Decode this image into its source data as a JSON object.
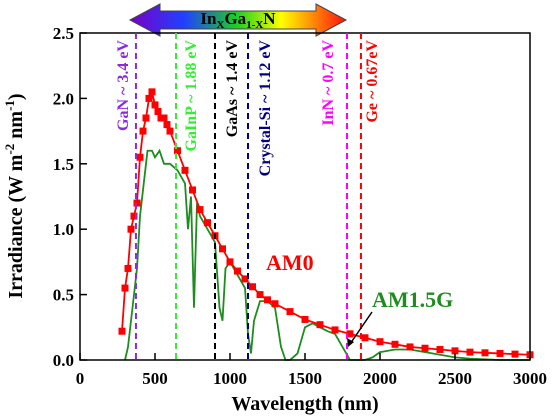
{
  "chart_data": {
    "type": "line",
    "banner": [
      "In",
      "X",
      "Ga",
      "1-X",
      "N"
    ],
    "xlabel": "Wavelength (nm)",
    "ylabel": [
      "Irradiance (W m",
      "-2",
      " nm",
      "-1",
      ")"
    ],
    "xlim": [
      0,
      3000
    ],
    "ylim": [
      0,
      2.5
    ],
    "xticks": [
      0,
      500,
      1000,
      1500,
      2000,
      2500,
      3000
    ],
    "yticks": [
      {
        "value": 0,
        "label": "0.0"
      },
      0.5,
      {
        "value": 1,
        "label": "1.0"
      },
      1.5,
      {
        "value": 2,
        "label": "2.0"
      },
      2.5
    ],
    "series": [
      {
        "name": "AM0",
        "color": "#ff0000",
        "markers": true,
        "x": [
          280,
          300,
          320,
          340,
          360,
          380,
          400,
          420,
          440,
          460,
          480,
          500,
          520,
          540,
          560,
          580,
          600,
          650,
          700,
          750,
          800,
          850,
          900,
          950,
          1000,
          1050,
          1100,
          1150,
          1200,
          1250,
          1300,
          1400,
          1500,
          1600,
          1700,
          1800,
          1900,
          2000,
          2100,
          2200,
          2300,
          2400,
          2500,
          2600,
          2700,
          2800,
          2900,
          3000
        ],
        "values": [
          0.22,
          0.55,
          0.7,
          1.0,
          1.1,
          1.2,
          1.55,
          1.75,
          1.85,
          2.0,
          2.05,
          1.95,
          1.9,
          1.85,
          1.85,
          1.8,
          1.75,
          1.6,
          1.45,
          1.3,
          1.15,
          1.05,
          0.95,
          0.85,
          0.75,
          0.68,
          0.62,
          0.56,
          0.5,
          0.46,
          0.43,
          0.37,
          0.31,
          0.27,
          0.23,
          0.2,
          0.17,
          0.14,
          0.12,
          0.1,
          0.09,
          0.08,
          0.07,
          0.06,
          0.055,
          0.05,
          0.045,
          0.04
        ]
      },
      {
        "name": "AM1.5G",
        "color": "#1e8c1e",
        "markers": false,
        "x": [
          300,
          320,
          350,
          380,
          400,
          420,
          450,
          480,
          500,
          530,
          560,
          600,
          650,
          700,
          720,
          740,
          760,
          780,
          800,
          850,
          900,
          930,
          950,
          970,
          1000,
          1050,
          1100,
          1120,
          1140,
          1160,
          1200,
          1250,
          1300,
          1340,
          1370,
          1400,
          1450,
          1500,
          1550,
          1600,
          1650,
          1700,
          1750,
          1800,
          1850,
          1900,
          1950,
          2000,
          2100,
          2200,
          2300,
          2400,
          2500,
          2600,
          2800,
          3000
        ],
        "values": [
          0.0,
          0.1,
          0.4,
          0.7,
          1.1,
          1.3,
          1.6,
          1.6,
          1.55,
          1.6,
          1.5,
          1.5,
          1.45,
          1.35,
          1.0,
          1.25,
          0.4,
          1.2,
          1.1,
          1.0,
          0.9,
          0.4,
          0.3,
          0.7,
          0.75,
          0.65,
          0.55,
          0.2,
          0.05,
          0.3,
          0.45,
          0.45,
          0.4,
          0.1,
          0.0,
          0.0,
          0.05,
          0.25,
          0.28,
          0.25,
          0.22,
          0.2,
          0.1,
          0.0,
          0.0,
          0.0,
          0.02,
          0.06,
          0.08,
          0.08,
          0.06,
          0.04,
          0.02,
          0.01,
          0.0,
          0.0
        ]
      }
    ],
    "bandgaps": [
      {
        "label": "GaN ~ 3.4 eV",
        "x": 373,
        "color": "#8a2be2"
      },
      {
        "label": "GaInP ~ 1.88 eV",
        "x": 640,
        "color": "#33ee33"
      },
      {
        "label": "GaAs ~ 1.4 eV",
        "x": 900,
        "color": "#000000"
      },
      {
        "label": "Crystal-Si ~ 1.12 eV",
        "x": 1120,
        "color": "#000080"
      },
      {
        "label": "InN ~ 0.7 eV",
        "x": 1780,
        "color": "#ff00ff"
      },
      {
        "label": "Ge ~ 0.67eV",
        "x": 1873,
        "color": "#ff0000"
      }
    ]
  }
}
